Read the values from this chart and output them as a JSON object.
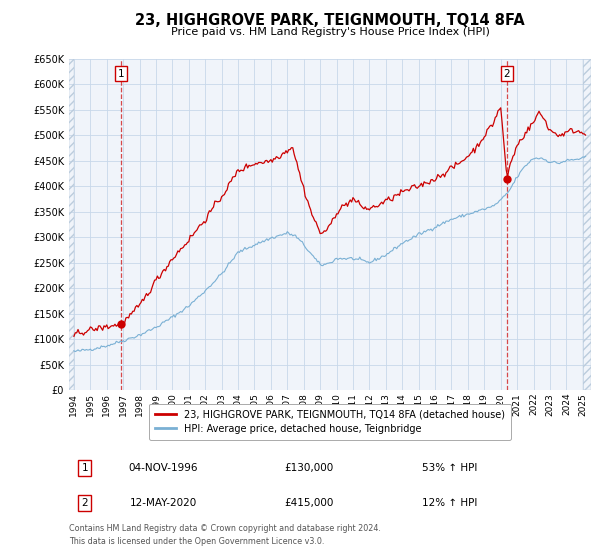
{
  "title": "23, HIGHGROVE PARK, TEIGNMOUTH, TQ14 8FA",
  "subtitle": "Price paid vs. HM Land Registry's House Price Index (HPI)",
  "background_color": "#ffffff",
  "plot_bg_color": "#f0f4fa",
  "grid_color": "#c8d8ea",
  "red_color": "#cc0000",
  "blue_color": "#7ab0d4",
  "ylim": [
    0,
    650000
  ],
  "xlim_start": 1993.7,
  "xlim_end": 2025.5,
  "yticks": [
    0,
    50000,
    100000,
    150000,
    200000,
    250000,
    300000,
    350000,
    400000,
    450000,
    500000,
    550000,
    600000,
    650000
  ],
  "ytick_labels": [
    "£0",
    "£50K",
    "£100K",
    "£150K",
    "£200K",
    "£250K",
    "£300K",
    "£350K",
    "£400K",
    "£450K",
    "£500K",
    "£550K",
    "£600K",
    "£650K"
  ],
  "xticks": [
    1994,
    1995,
    1996,
    1997,
    1998,
    1999,
    2000,
    2001,
    2002,
    2003,
    2004,
    2005,
    2006,
    2007,
    2008,
    2009,
    2010,
    2011,
    2012,
    2013,
    2014,
    2015,
    2016,
    2017,
    2018,
    2019,
    2020,
    2021,
    2022,
    2023,
    2024,
    2025
  ],
  "legend_entries": [
    "23, HIGHGROVE PARK, TEIGNMOUTH, TQ14 8FA (detached house)",
    "HPI: Average price, detached house, Teignbridge"
  ],
  "sale1_x": 1996.85,
  "sale1_y": 130000,
  "sale1_label": "1",
  "sale1_date": "04-NOV-1996",
  "sale1_price": "£130,000",
  "sale1_hpi": "53% ↑ HPI",
  "sale2_x": 2020.37,
  "sale2_y": 415000,
  "sale2_label": "2",
  "sale2_date": "12-MAY-2020",
  "sale2_price": "£415,000",
  "sale2_hpi": "12% ↑ HPI",
  "vline1_x": 1996.85,
  "vline2_x": 2020.37,
  "footer_line1": "Contains HM Land Registry data © Crown copyright and database right 2024.",
  "footer_line2": "This data is licensed under the Open Government Licence v3.0."
}
